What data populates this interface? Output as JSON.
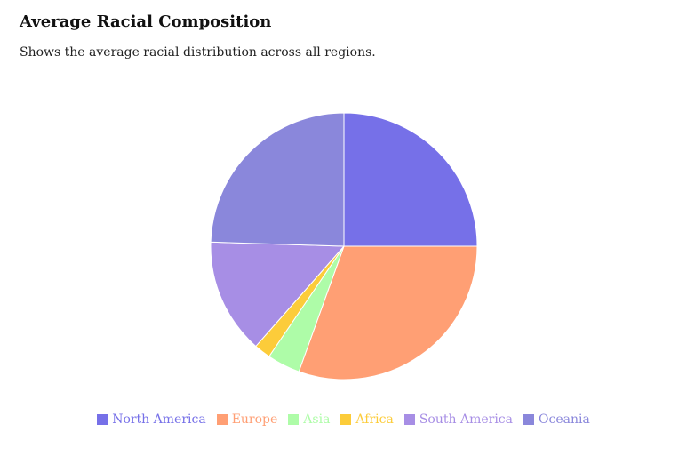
{
  "chart_data": {
    "type": "pie",
    "title": "Average Racial Composition",
    "subtitle": "Shows the average racial distribution across all regions.",
    "legend_position": "bottom",
    "series": [
      {
        "name": "North America",
        "value": 25,
        "color": "#7670e8"
      },
      {
        "name": "Europe",
        "value": 30.5,
        "color": "#ff9f74"
      },
      {
        "name": "Asia",
        "value": 4,
        "color": "#aefca8"
      },
      {
        "name": "Africa",
        "value": 2,
        "color": "#fccc3a"
      },
      {
        "name": "South America",
        "value": 14,
        "color": "#a78ee5"
      },
      {
        "name": "Oceania",
        "value": 24.5,
        "color": "#8a87db"
      }
    ]
  }
}
